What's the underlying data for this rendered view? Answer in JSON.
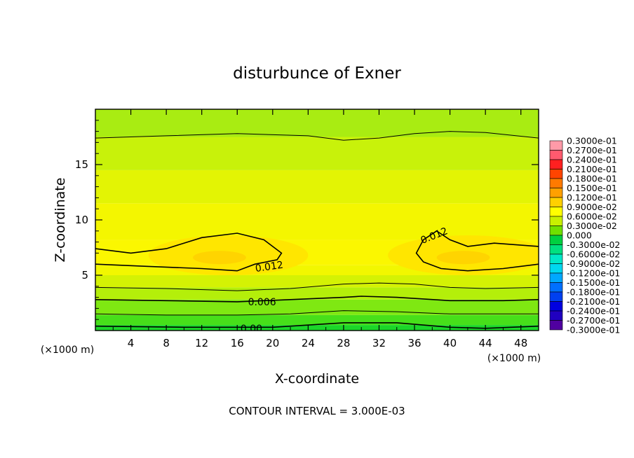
{
  "chart_data": {
    "type": "heatmap",
    "title": "disturbunce of Exner",
    "xlabel": "X-coordinate",
    "ylabel": "Z-coordinate",
    "x_unit_left": "(×1000 m)",
    "x_unit_right": "(×1000 m)",
    "footer": "CONTOUR INTERVAL = 3.000E-03",
    "xlim": [
      0,
      50
    ],
    "ylim": [
      0,
      20
    ],
    "x_ticks": [
      "4",
      "8",
      "12",
      "16",
      "20",
      "24",
      "28",
      "32",
      "36",
      "40",
      "44",
      "48"
    ],
    "y_ticks": [
      "5",
      "10",
      "15"
    ],
    "contour_labels": [
      "0.012",
      "0.012",
      "0.006",
      "0.00"
    ],
    "legend_labels": [
      "0.3000e-01",
      "0.2700e-01",
      "0.2400e-01",
      "0.2100e-01",
      "0.1800e-01",
      "0.1500e-01",
      "0.1200e-01",
      "0.9000e-02",
      "0.6000e-02",
      "0.3000e-02",
      "0.000",
      "-0.3000e-02",
      "-0.6000e-02",
      "-0.9000e-02",
      "-0.1200e-01",
      "-0.1500e-01",
      "-0.1800e-01",
      "-0.2100e-01",
      "-0.2400e-01",
      "-0.2700e-01",
      "-0.3000e-01"
    ],
    "legend_colors": [
      "#ff9aa8",
      "#ff5a6e",
      "#ff2020",
      "#ff4400",
      "#ff7a00",
      "#ffa000",
      "#ffd000",
      "#ffff00",
      "#c8f000",
      "#70e000",
      "#00d040",
      "#00e080",
      "#00e8c8",
      "#00d8f0",
      "#00a8ff",
      "#0070ff",
      "#0040f0",
      "#0000e0",
      "#2000c0",
      "#5000a0"
    ],
    "bands": [
      {
        "z": 0.0,
        "color": "#1bd629"
      },
      {
        "z": 0.5,
        "color": "#47df1a"
      },
      {
        "z": 1.4,
        "color": "#7fe812"
      },
      {
        "z": 2.8,
        "color": "#b4ef0a"
      },
      {
        "z": 3.9,
        "color": "#d4f204"
      },
      {
        "z": 5.0,
        "color": "#f2f700"
      },
      {
        "z": 5.9,
        "color": "#fbf700"
      },
      {
        "z": 8.2,
        "color": "#f4f600"
      },
      {
        "z": 11.5,
        "color": "#e3f404"
      },
      {
        "z": 14.5,
        "color": "#c8f20a"
      },
      {
        "z": 17.5,
        "color": "#a9ec12"
      }
    ],
    "grid": false
  }
}
